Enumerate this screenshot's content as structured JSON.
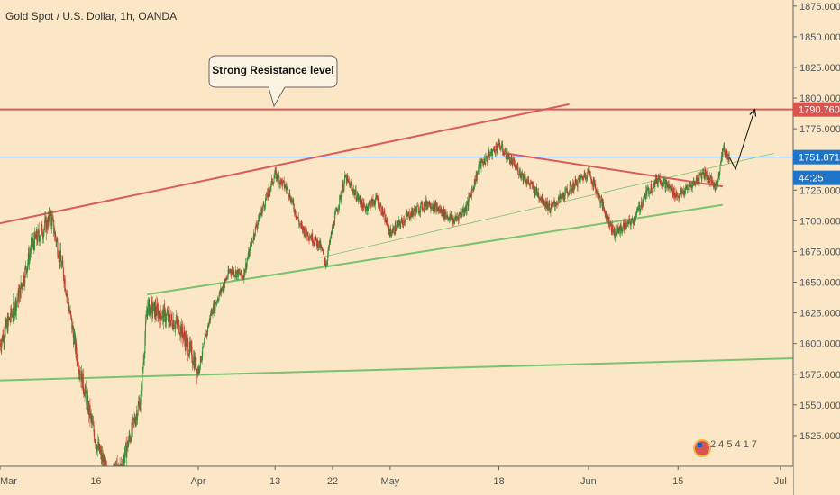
{
  "chart_data": {
    "type": "candlestick",
    "title": "Gold Spot / U.S. Dollar, 1h, OANDA",
    "annotation": "Strong Resistance level",
    "countdown": "44:25",
    "watermark_digits": "2 4 5 4 1 7",
    "colors": {
      "background": "#fbe7c6",
      "up": "#3a8f3a",
      "down": "#c0392b",
      "resistance": "#d95c5c",
      "support": "#7cc16e",
      "price_line": "#5b8fd6",
      "price_label": "#1e74c9",
      "resistance_label": "#d9534f"
    },
    "y_axis": {
      "ylim": [
        1500,
        1880
      ],
      "ticks": [
        1875.0,
        1850.0,
        1825.0,
        1800.0,
        1775.0,
        1725.0,
        1700.0,
        1675.0,
        1650.0,
        1625.0,
        1600.0,
        1575.0,
        1550.0,
        1525.0
      ],
      "tick_labels": [
        "1875.000",
        "1850.000",
        "1825.000",
        "1800.000",
        "1775.000",
        "1725.000",
        "1700.000",
        "1675.000",
        "1650.000",
        "1625.000",
        "1600.000",
        "1575.000",
        "1550.000",
        "1525.000"
      ]
    },
    "x_axis": {
      "xlim": [
        "2020-03-01",
        "2020-07-03"
      ],
      "ticks": [
        "2020-03-01",
        "2020-03-16",
        "2020-04-01",
        "2020-04-13",
        "2020-04-22",
        "2020-05-01",
        "2020-05-18",
        "2020-06-01",
        "2020-06-15",
        "2020-07-01"
      ],
      "tick_labels": [
        "Mar",
        "16",
        "Apr",
        "13",
        "22",
        "May",
        "18",
        "Jun",
        "15",
        "Jul"
      ]
    },
    "price_levels": {
      "resistance": 1790.76,
      "resistance_label": "1790.760",
      "current": 1751.871,
      "current_label": "1751.871"
    },
    "price_path": [
      [
        "2020-03-01",
        1600
      ],
      [
        "2020-03-04",
        1640
      ],
      [
        "2020-03-06",
        1680
      ],
      [
        "2020-03-09",
        1703
      ],
      [
        "2020-03-11",
        1655
      ],
      [
        "2020-03-13",
        1590
      ],
      [
        "2020-03-16",
        1520
      ],
      [
        "2020-03-18",
        1490
      ],
      [
        "2020-03-20",
        1500
      ],
      [
        "2020-03-23",
        1555
      ],
      [
        "2020-03-24",
        1630
      ],
      [
        "2020-03-26",
        1625
      ],
      [
        "2020-03-29",
        1615
      ],
      [
        "2020-04-01",
        1578
      ],
      [
        "2020-04-03",
        1625
      ],
      [
        "2020-04-06",
        1660
      ],
      [
        "2020-04-08",
        1655
      ],
      [
        "2020-04-10",
        1695
      ],
      [
        "2020-04-13",
        1738
      ],
      [
        "2020-04-15",
        1725
      ],
      [
        "2020-04-17",
        1695
      ],
      [
        "2020-04-20",
        1680
      ],
      [
        "2020-04-21",
        1665
      ],
      [
        "2020-04-22",
        1695
      ],
      [
        "2020-04-24",
        1735
      ],
      [
        "2020-04-27",
        1710
      ],
      [
        "2020-04-29",
        1718
      ],
      [
        "2020-05-01",
        1690
      ],
      [
        "2020-05-04",
        1705
      ],
      [
        "2020-05-07",
        1715
      ],
      [
        "2020-05-11",
        1700
      ],
      [
        "2020-05-13",
        1712
      ],
      [
        "2020-05-15",
        1745
      ],
      [
        "2020-05-18",
        1762
      ],
      [
        "2020-05-20",
        1748
      ],
      [
        "2020-05-22",
        1735
      ],
      [
        "2020-05-26",
        1710
      ],
      [
        "2020-05-28",
        1720
      ],
      [
        "2020-06-01",
        1740
      ],
      [
        "2020-06-03",
        1715
      ],
      [
        "2020-06-05",
        1690
      ],
      [
        "2020-06-08",
        1700
      ],
      [
        "2020-06-10",
        1722
      ],
      [
        "2020-06-12",
        1735
      ],
      [
        "2020-06-15",
        1720
      ],
      [
        "2020-06-17",
        1728
      ],
      [
        "2020-06-19",
        1740
      ],
      [
        "2020-06-21",
        1727
      ],
      [
        "2020-06-22",
        1758
      ],
      [
        "2020-06-23",
        1751.871
      ]
    ],
    "trendlines": [
      {
        "name": "",
        "kind": "resistance",
        "start": [
          "2020-03-01",
          1698
        ],
        "end": [
          "2020-05-29",
          1795
        ]
      },
      {
        "name": "",
        "kind": "support",
        "start": [
          "2020-03-24",
          1640
        ],
        "end": [
          "2020-06-22",
          1713
        ]
      },
      {
        "name": "",
        "kind": "support",
        "start": [
          "2020-03-01",
          1570
        ],
        "end": [
          "2020-07-03",
          1588
        ]
      },
      {
        "name": "",
        "kind": "support_thin",
        "start": [
          "2020-04-20",
          1670
        ],
        "end": [
          "2020-06-30",
          1755
        ]
      },
      {
        "name": "",
        "kind": "resistance",
        "start": [
          "2020-05-19",
          1755
        ],
        "end": [
          "2020-06-22",
          1728
        ]
      }
    ],
    "projection": [
      [
        "2020-06-23",
        1752
      ],
      [
        "2020-06-24",
        1742
      ],
      [
        "2020-06-27",
        1790.76
      ]
    ],
    "grid": false,
    "legend": "none"
  }
}
